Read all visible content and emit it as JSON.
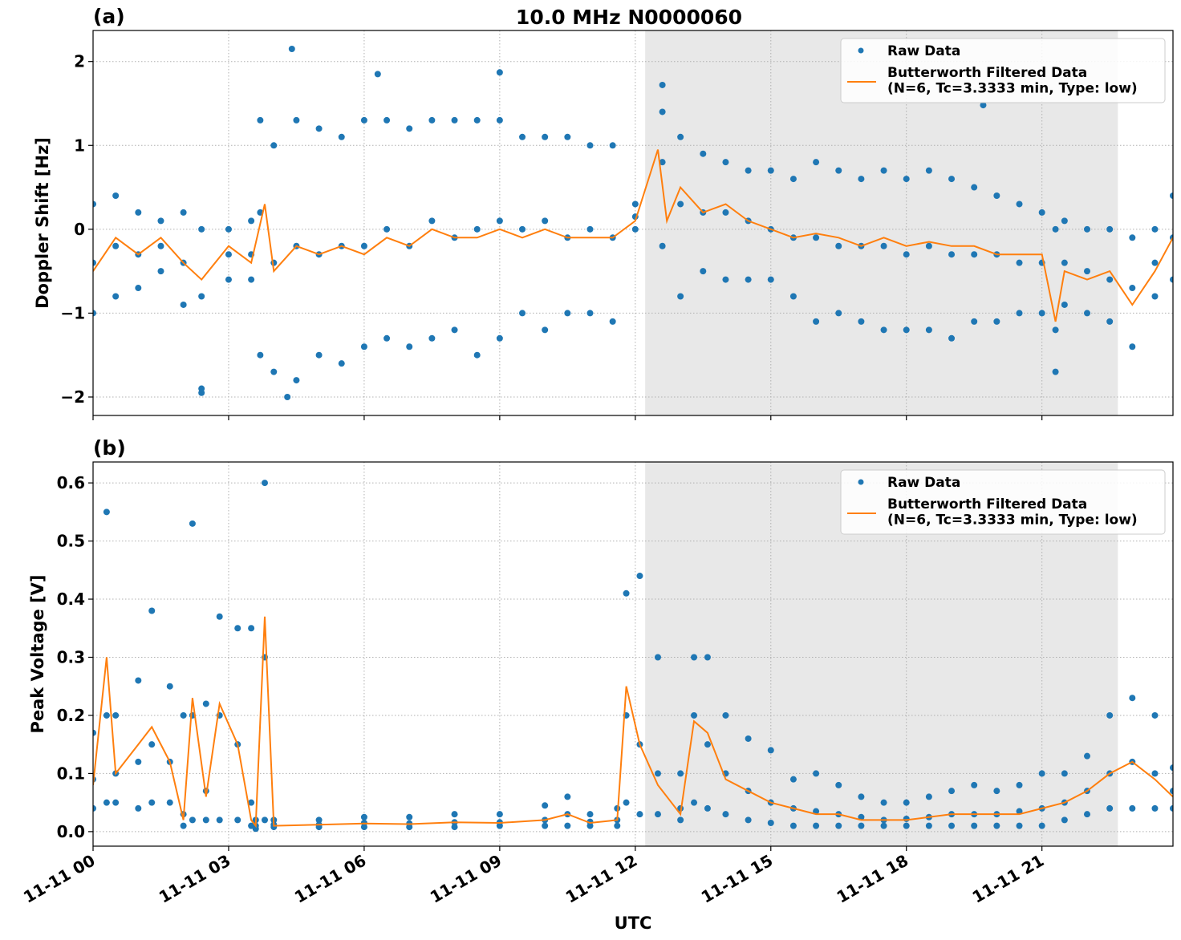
{
  "chart_data": [
    {
      "type": "combo",
      "title": "10.0 MHz N0000060",
      "panel_label": "(a)",
      "y_label": "Doppler Shift [Hz]",
      "xlim": [
        0,
        23.9
      ],
      "ylim": [
        -2.22,
        2.37
      ],
      "grid": true,
      "legend": "upper right",
      "shaded_xspan": [
        12.22,
        22.68
      ],
      "xticks": [
        0,
        3,
        6,
        9,
        12,
        15,
        18,
        21
      ],
      "yticks": [
        {
          "value": -2,
          "label": "−2"
        },
        {
          "value": -1,
          "label": "−1"
        },
        0,
        1,
        2
      ],
      "series": [
        {
          "name": "Raw Data",
          "type": "scatter",
          "color": "#1f77b4",
          "x": [
            0,
            0.5,
            1,
            1.5,
            2,
            2.4,
            3,
            3.5,
            3.7,
            4,
            4.5,
            5,
            5.5,
            6,
            6.5,
            7,
            7.5,
            8,
            8.5,
            9,
            9.5,
            10,
            10.5,
            11,
            11.5,
            12,
            12.6,
            13,
            13.5,
            14,
            14.5,
            15,
            15.5,
            16,
            16.5,
            17,
            17.5,
            18,
            18.5,
            19,
            19.5,
            20,
            20.5,
            21,
            21.3,
            21.5,
            22,
            22.5,
            23,
            23.5,
            23.9,
            0,
            0.5,
            1,
            1.5,
            2,
            2.4,
            3,
            3.5,
            3.7,
            4,
            4.5,
            5,
            5.5,
            6,
            6.5,
            7,
            7.5,
            8,
            8.5,
            9,
            9.5,
            10,
            10.5,
            11,
            11.5,
            12,
            12.6,
            13,
            13.5,
            14,
            14.5,
            15,
            15.5,
            16,
            16.5,
            17,
            17.5,
            18,
            18.5,
            19,
            19.5,
            20,
            20.5,
            21,
            21.3,
            21.5,
            22,
            22.5,
            23,
            23.5,
            23.9,
            0,
            0.5,
            1,
            1.5,
            2,
            2.4,
            3,
            3.5,
            3.7,
            4,
            4.5,
            5,
            5.5,
            6,
            6.5,
            7,
            7.5,
            8,
            8.5,
            9,
            9.5,
            10,
            10.5,
            11,
            11.5,
            12,
            12.6,
            13,
            13.5,
            14,
            14.5,
            15,
            15.5,
            16,
            16.5,
            17,
            17.5,
            18,
            18.5,
            19,
            19.5,
            20,
            20.5,
            21,
            21.3,
            21.5,
            22,
            22.5,
            23,
            23.5,
            23.9,
            4.4,
            6.3,
            9.0,
            4.3,
            2.4,
            12.6,
            19.7
          ],
          "values": [
            0.3,
            0.4,
            0.2,
            0.1,
            0.2,
            0.0,
            0.0,
            0.1,
            1.3,
            1.0,
            1.3,
            1.2,
            1.1,
            1.3,
            1.3,
            1.2,
            1.3,
            1.3,
            1.3,
            1.3,
            1.1,
            1.1,
            1.1,
            1.0,
            1.0,
            0.3,
            1.4,
            1.1,
            0.9,
            0.8,
            0.7,
            0.7,
            0.6,
            0.8,
            0.7,
            0.6,
            0.7,
            0.6,
            0.7,
            0.6,
            0.5,
            0.4,
            0.3,
            0.2,
            0.0,
            0.1,
            0.0,
            0.0,
            -0.1,
            0.0,
            0.4,
            -0.4,
            -0.2,
            -0.3,
            -0.2,
            -0.4,
            -0.8,
            -0.3,
            -0.3,
            0.2,
            -0.4,
            -0.2,
            -0.3,
            -0.2,
            -0.2,
            0.0,
            -0.2,
            0.1,
            -0.1,
            0.0,
            0.1,
            0.0,
            0.1,
            -0.1,
            0.0,
            -0.1,
            0.15,
            0.8,
            0.3,
            0.2,
            0.2,
            0.1,
            0.0,
            -0.1,
            -0.1,
            -0.2,
            -0.2,
            -0.2,
            -0.3,
            -0.2,
            -0.3,
            -0.3,
            -0.3,
            -0.4,
            -0.4,
            -1.2,
            -0.4,
            -0.5,
            -0.6,
            -0.7,
            -0.4,
            -0.1,
            -1.0,
            -0.8,
            -0.7,
            -0.5,
            -0.9,
            -1.9,
            -0.6,
            -0.6,
            -1.5,
            -1.7,
            -1.8,
            -1.5,
            -1.6,
            -1.4,
            -1.3,
            -1.4,
            -1.3,
            -1.2,
            -1.5,
            -1.3,
            -1.0,
            -1.2,
            -1.0,
            -1.0,
            -1.1,
            0.0,
            -0.2,
            -0.8,
            -0.5,
            -0.6,
            -0.6,
            -0.6,
            -0.8,
            -1.1,
            -1.0,
            -1.1,
            -1.2,
            -1.2,
            -1.2,
            -1.3,
            -1.1,
            -1.1,
            -1.0,
            -1.0,
            -1.7,
            -0.9,
            -1.0,
            -1.1,
            -1.4,
            -0.8,
            -0.6,
            2.15,
            1.85,
            1.87,
            -2.0,
            -1.95,
            1.72,
            1.48
          ]
        },
        {
          "name": "Butterworth Filtered Data\n(N=6, Tc=3.3333 min, Type: low)",
          "type": "line",
          "color": "#ff7f0e",
          "x": [
            0,
            0.5,
            1,
            1.5,
            2,
            2.4,
            3,
            3.5,
            3.8,
            4,
            4.5,
            5,
            5.5,
            6,
            6.5,
            7,
            7.5,
            8,
            8.5,
            9,
            9.5,
            10,
            10.5,
            11,
            11.5,
            12,
            12.5,
            12.7,
            13,
            13.5,
            14,
            14.5,
            15,
            15.5,
            16,
            16.5,
            17,
            17.5,
            18,
            18.5,
            19,
            19.5,
            20,
            20.5,
            21,
            21.3,
            21.5,
            22,
            22.5,
            23,
            23.5,
            23.9
          ],
          "values": [
            -0.5,
            -0.1,
            -0.3,
            -0.1,
            -0.4,
            -0.6,
            -0.2,
            -0.4,
            0.3,
            -0.5,
            -0.2,
            -0.3,
            -0.2,
            -0.3,
            -0.1,
            -0.2,
            0.0,
            -0.1,
            -0.1,
            0.0,
            -0.1,
            0.0,
            -0.1,
            -0.1,
            -0.1,
            0.1,
            0.95,
            0.1,
            0.5,
            0.2,
            0.3,
            0.1,
            0.0,
            -0.1,
            -0.05,
            -0.1,
            -0.2,
            -0.1,
            -0.2,
            -0.15,
            -0.2,
            -0.2,
            -0.3,
            -0.3,
            -0.3,
            -1.1,
            -0.5,
            -0.6,
            -0.5,
            -0.9,
            -0.5,
            -0.1
          ]
        }
      ]
    },
    {
      "type": "combo",
      "panel_label": "(b)",
      "y_label": "Peak Voltage [V]",
      "x_label": "UTC",
      "xlim": [
        0,
        23.9
      ],
      "ylim": [
        -0.025,
        0.636
      ],
      "grid": true,
      "legend": "upper right",
      "shaded_xspan": [
        12.22,
        22.68
      ],
      "xticks": [
        {
          "value": 0,
          "label": "11-11 00"
        },
        {
          "value": 3,
          "label": "11-11 03"
        },
        {
          "value": 6,
          "label": "11-11 06"
        },
        {
          "value": 9,
          "label": "11-11 09"
        },
        {
          "value": 12,
          "label": "11-11 12"
        },
        {
          "value": 15,
          "label": "11-11 15"
        },
        {
          "value": 18,
          "label": "11-11 18"
        },
        {
          "value": 21,
          "label": "11-11 21"
        }
      ],
      "yticks": [
        {
          "value": 0,
          "label": "0.0"
        },
        0.1,
        0.2,
        0.3,
        0.4,
        0.5,
        0.6
      ],
      "series": [
        {
          "name": "Raw Data",
          "type": "scatter",
          "color": "#1f77b4",
          "x": [
            0,
            0.3,
            0.5,
            1,
            1.3,
            1.7,
            2,
            2.2,
            2.5,
            2.8,
            3.2,
            3.5,
            3.6,
            3.8,
            4,
            5,
            6,
            7,
            8,
            9,
            10,
            10.5,
            11,
            11.6,
            11.8,
            12.1,
            12.5,
            13,
            13.3,
            13.6,
            14,
            14.5,
            15,
            15.5,
            16,
            16.5,
            17,
            17.5,
            18,
            18.5,
            19,
            19.5,
            20,
            20.5,
            21,
            21.5,
            22,
            22.5,
            23,
            23.5,
            23.9,
            0,
            0.3,
            0.5,
            1,
            1.3,
            1.7,
            2,
            2.2,
            2.5,
            2.8,
            3.2,
            3.5,
            3.6,
            3.8,
            4,
            5,
            6,
            7,
            8,
            9,
            10,
            10.5,
            11,
            11.6,
            11.8,
            12.1,
            12.5,
            13,
            13.3,
            13.6,
            14,
            14.5,
            15,
            15.5,
            16,
            16.5,
            17,
            17.5,
            18,
            18.5,
            19,
            19.5,
            20,
            20.5,
            21,
            21.5,
            22,
            22.5,
            23,
            23.5,
            23.9,
            0,
            0.3,
            0.5,
            1,
            1.3,
            1.7,
            2,
            2.2,
            2.5,
            2.8,
            3.2,
            3.5,
            3.6,
            3.8,
            4,
            5,
            6,
            7,
            8,
            9,
            10,
            10.5,
            11,
            11.6,
            11.8,
            12.1,
            12.5,
            13,
            13.3,
            13.6,
            14,
            14.5,
            15,
            15.5,
            16,
            16.5,
            17,
            17.5,
            18,
            18.5,
            19,
            19.5,
            20,
            20.5,
            21,
            21.5,
            22,
            22.5,
            23,
            23.5,
            23.9
          ],
          "values": [
            0.17,
            0.55,
            0.2,
            0.26,
            0.38,
            0.25,
            0.2,
            0.53,
            0.22,
            0.37,
            0.35,
            0.35,
            0.02,
            0.6,
            0.02,
            0.02,
            0.025,
            0.025,
            0.03,
            0.03,
            0.045,
            0.06,
            0.03,
            0.04,
            0.41,
            0.44,
            0.3,
            0.1,
            0.3,
            0.3,
            0.2,
            0.16,
            0.14,
            0.09,
            0.1,
            0.08,
            0.06,
            0.05,
            0.05,
            0.06,
            0.07,
            0.08,
            0.07,
            0.08,
            0.1,
            0.1,
            0.13,
            0.2,
            0.23,
            0.2,
            0.11,
            0.09,
            0.2,
            0.1,
            0.12,
            0.15,
            0.12,
            0.03,
            0.2,
            0.07,
            0.2,
            0.15,
            0.05,
            0.01,
            0.3,
            0.012,
            0.012,
            0.015,
            0.014,
            0.016,
            0.016,
            0.02,
            0.03,
            0.017,
            0.02,
            0.2,
            0.15,
            0.1,
            0.04,
            0.2,
            0.15,
            0.1,
            0.07,
            0.05,
            0.04,
            0.035,
            0.03,
            0.025,
            0.02,
            0.022,
            0.025,
            0.03,
            0.03,
            0.03,
            0.035,
            0.04,
            0.05,
            0.07,
            0.1,
            0.12,
            0.1,
            0.07,
            0.04,
            0.05,
            0.05,
            0.04,
            0.05,
            0.05,
            0.01,
            0.02,
            0.02,
            0.02,
            0.02,
            0.01,
            0.005,
            0.02,
            0.008,
            0.008,
            0.008,
            0.008,
            0.008,
            0.01,
            0.01,
            0.01,
            0.01,
            0.01,
            0.05,
            0.03,
            0.03,
            0.02,
            0.05,
            0.04,
            0.03,
            0.02,
            0.015,
            0.01,
            0.01,
            0.01,
            0.01,
            0.01,
            0.01,
            0.01,
            0.01,
            0.01,
            0.01,
            0.01,
            0.01,
            0.02,
            0.03,
            0.04,
            0.04,
            0.04,
            0.04
          ]
        },
        {
          "name": "Butterworth Filtered Data\n(N=6, Tc=3.3333 min, Type: low)",
          "type": "line",
          "color": "#ff7f0e",
          "x": [
            0,
            0.3,
            0.5,
            1,
            1.3,
            1.7,
            2,
            2.2,
            2.5,
            2.8,
            3.2,
            3.5,
            3.6,
            3.8,
            4,
            5,
            6,
            7,
            8,
            9,
            10,
            10.5,
            11,
            11.6,
            11.8,
            12.1,
            12.5,
            13,
            13.3,
            13.6,
            14,
            14.5,
            15,
            15.5,
            16,
            16.5,
            17,
            17.5,
            18,
            18.5,
            19,
            19.5,
            20,
            20.5,
            21,
            21.5,
            22,
            22.5,
            23,
            23.5,
            23.9
          ],
          "values": [
            0.08,
            0.3,
            0.1,
            0.15,
            0.18,
            0.12,
            0.02,
            0.23,
            0.06,
            0.22,
            0.15,
            0.02,
            0.01,
            0.37,
            0.01,
            0.012,
            0.014,
            0.013,
            0.016,
            0.015,
            0.02,
            0.03,
            0.015,
            0.02,
            0.25,
            0.15,
            0.08,
            0.03,
            0.19,
            0.17,
            0.09,
            0.07,
            0.05,
            0.04,
            0.03,
            0.03,
            0.02,
            0.02,
            0.02,
            0.025,
            0.03,
            0.03,
            0.03,
            0.03,
            0.04,
            0.05,
            0.07,
            0.1,
            0.12,
            0.09,
            0.06
          ]
        }
      ]
    }
  ]
}
